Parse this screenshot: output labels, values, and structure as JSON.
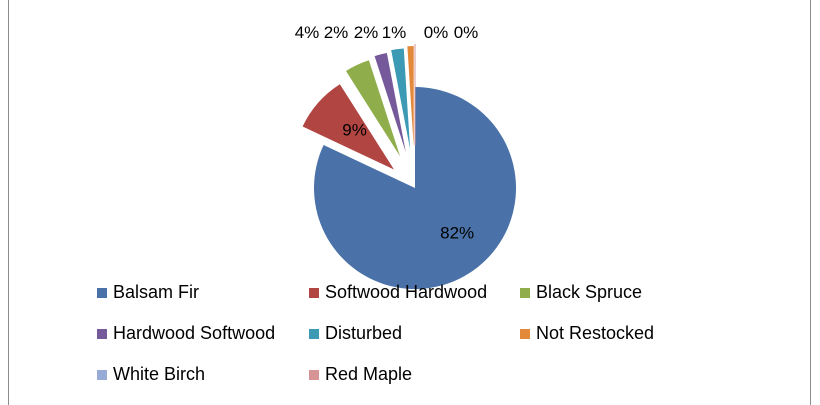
{
  "chart_data": {
    "type": "pie",
    "exploded": true,
    "slices": [
      {
        "label": "Balsam Fir",
        "value": 82,
        "pct_label": "82%",
        "color": "#4a72a8"
      },
      {
        "label": "Softwood Hardwood",
        "value": 9,
        "pct_label": "9%",
        "color": "#b14542"
      },
      {
        "label": "Black Spruce",
        "value": 4,
        "pct_label": "4%",
        "color": "#8fae4b"
      },
      {
        "label": "Hardwood Softwood",
        "value": 2,
        "pct_label": "2%",
        "color": "#76599a"
      },
      {
        "label": "Disturbed",
        "value": 2,
        "pct_label": "2%",
        "color": "#3c9ab4"
      },
      {
        "label": "Not Restocked",
        "value": 1,
        "pct_label": "1%",
        "color": "#e38a3a"
      },
      {
        "label": "White Birch",
        "value": 0,
        "pct_label": "0%",
        "color": "#98abd6"
      },
      {
        "label": "Red Maple",
        "value": 0,
        "pct_label": "0%",
        "color": "#d69494"
      }
    ],
    "legend_position": "bottom"
  }
}
